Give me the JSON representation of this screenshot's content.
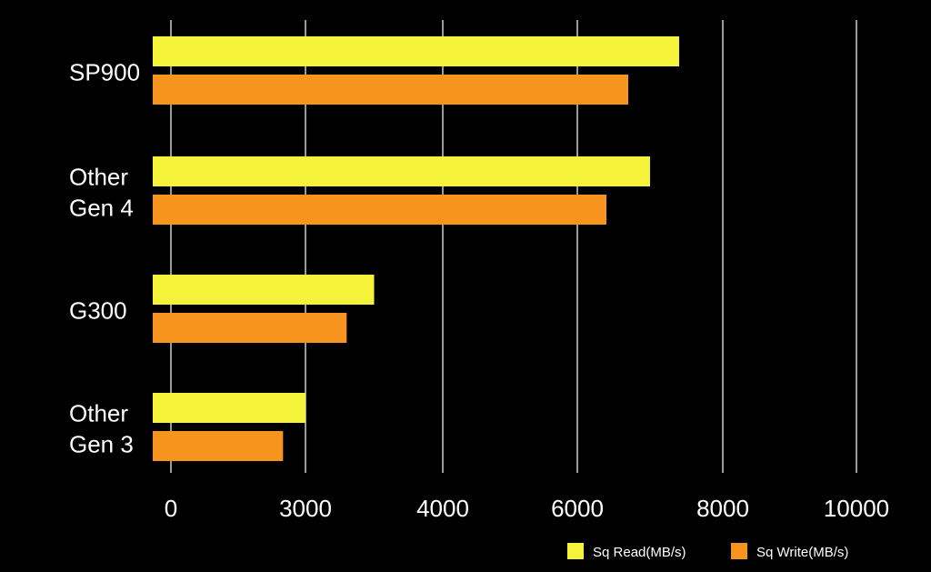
{
  "chart_data": {
    "type": "bar",
    "orientation": "horizontal",
    "categories": [
      [
        "SP900"
      ],
      [
        "Other",
        "Gen 4"
      ],
      [
        "G300"
      ],
      [
        "Other",
        "Gen 3"
      ]
    ],
    "tick_labels": [
      "0",
      "3000",
      "4000",
      "6000",
      "8000",
      "10000"
    ],
    "series": [
      {
        "name": "Sq Read(MB/s)",
        "color": "#f5f23a",
        "values": [
          7400,
          7000,
          3500,
          3000
        ]
      },
      {
        "name": "Sq Write(MB/s)",
        "color": "#f7941d",
        "values": [
          6700,
          6400,
          3300,
          2500
        ]
      }
    ],
    "grid": true,
    "grid_color": "#9a9a9a",
    "background": "#000000",
    "legend_position": "bottom-right"
  }
}
